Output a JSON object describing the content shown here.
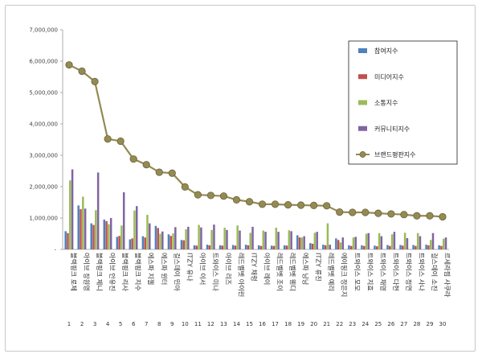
{
  "chart_data": {
    "type": "bar",
    "title": "",
    "xlabel": "",
    "ylabel": "",
    "ylim": [
      0,
      7000000
    ],
    "y_ticks": [
      "-",
      "1,000,000",
      "2,000,000",
      "3,000,000",
      "4,000,000",
      "5,000,000",
      "6,000,000",
      "7,000,000"
    ],
    "grid": false,
    "legend_position": "top-right",
    "categories": [
      "블랙핑크 로제",
      "아이브 장원영",
      "블랙핑크 제니",
      "아이브 안유진",
      "블랙핑크 리사",
      "블랙핑크 지수",
      "에스파 지젤",
      "에스파 윈터",
      "걸스데이 민아",
      "ITZY 유나",
      "아이브 이서",
      "트와이스 미나",
      "아이브 리즈",
      "레드벨벳 아이린",
      "ITZY 채령",
      "아이브 레이",
      "레드벨벳 조이",
      "레드벨벳 웬디",
      "에스파 닝닝",
      "ITZY 류진",
      "레드벨벳 예리",
      "에이핑크 정은지",
      "트와이스 모모",
      "트와이스 지효",
      "트와이스 채영",
      "트와이스 다현",
      "트와이스 정연",
      "트와이스 사나",
      "걸스데이 소진",
      "르세라핌 사쿠라"
    ],
    "ranks": [
      "1",
      "2",
      "3",
      "4",
      "5",
      "6",
      "7",
      "8",
      "9",
      "10",
      "11",
      "12",
      "13",
      "14",
      "15",
      "16",
      "17",
      "18",
      "19",
      "20",
      "21",
      "22",
      "23",
      "24",
      "25",
      "26",
      "27",
      "28",
      "29",
      "30"
    ],
    "series": [
      {
        "name": "참여지수",
        "color": "#4f81bd",
        "values": [
          580000,
          1400000,
          830000,
          950000,
          400000,
          320000,
          420000,
          750000,
          480000,
          300000,
          130000,
          150000,
          130000,
          140000,
          150000,
          130000,
          120000,
          130000,
          450000,
          200000,
          150000,
          350000,
          130000,
          130000,
          120000,
          140000,
          140000,
          140000,
          150000,
          130000
        ]
      },
      {
        "name": "미디어지수",
        "color": "#c0504d",
        "values": [
          520000,
          1280000,
          780000,
          900000,
          430000,
          350000,
          380000,
          680000,
          430000,
          290000,
          120000,
          130000,
          120000,
          120000,
          130000,
          110000,
          110000,
          120000,
          380000,
          180000,
          130000,
          300000,
          110000,
          110000,
          100000,
          110000,
          120000,
          110000,
          130000,
          110000
        ]
      },
      {
        "name": "소통지수",
        "color": "#9bbb59",
        "values": [
          2200000,
          1680000,
          1250000,
          800000,
          760000,
          1240000,
          1100000,
          500000,
          510000,
          640000,
          780000,
          620000,
          690000,
          760000,
          530000,
          600000,
          690000,
          610000,
          380000,
          530000,
          830000,
          220000,
          380000,
          500000,
          520000,
          480000,
          530000,
          520000,
          300000,
          340000
        ]
      },
      {
        "name": "커뮤니티지수",
        "color": "#8064a2",
        "values": [
          2550000,
          1300000,
          2450000,
          1000000,
          1820000,
          1380000,
          830000,
          570000,
          710000,
          720000,
          700000,
          790000,
          620000,
          600000,
          720000,
          560000,
          560000,
          580000,
          420000,
          560000,
          150000,
          380000,
          400000,
          520000,
          420000,
          560000,
          360000,
          420000,
          520000,
          380000
        ]
      }
    ],
    "line": {
      "name": "브랜드평판지수",
      "color": "#948a54",
      "values": [
        5880000,
        5680000,
        5350000,
        3520000,
        3450000,
        2880000,
        2700000,
        2460000,
        2430000,
        1990000,
        1740000,
        1720000,
        1700000,
        1580000,
        1520000,
        1440000,
        1440000,
        1420000,
        1410000,
        1400000,
        1390000,
        1190000,
        1180000,
        1180000,
        1150000,
        1130000,
        1110000,
        1070000,
        1070000,
        1040000
      ]
    }
  }
}
